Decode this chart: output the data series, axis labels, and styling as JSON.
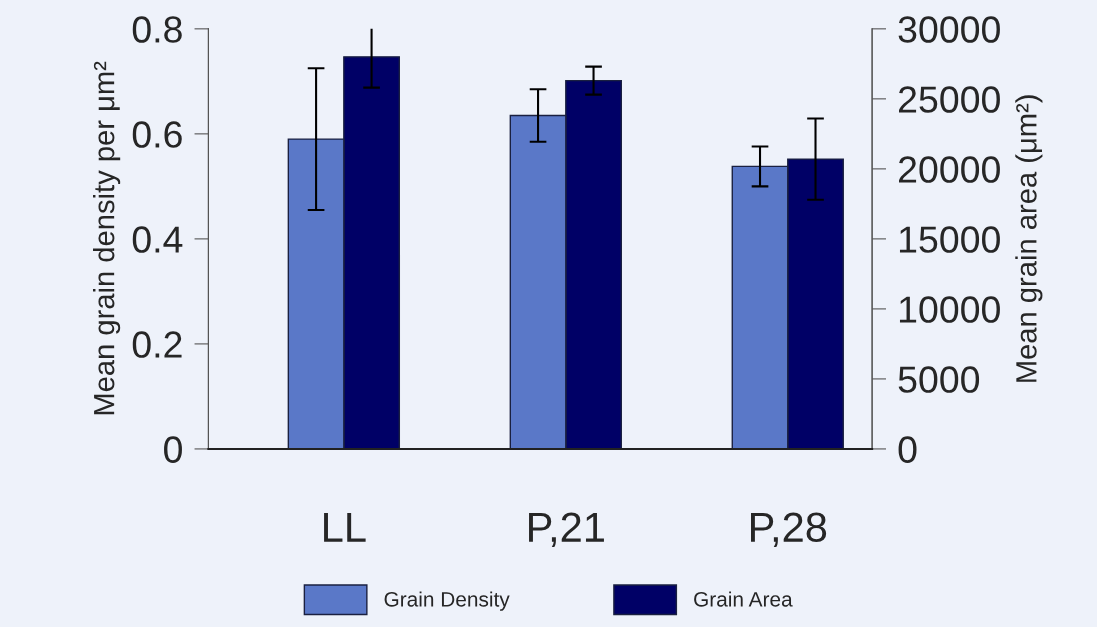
{
  "chart_data": {
    "type": "bar",
    "ylabel": "Mean grain density per μm²",
    "y2label": "Mean grain area (μm²)",
    "categories": [
      "LL",
      "P,21",
      "P,28"
    ],
    "series": [
      {
        "name": "Grain Density",
        "color": "#5a78c8",
        "values": [
          0.59,
          0.635,
          0.538
        ],
        "errors": [
          0.135,
          0.05,
          0.038
        ]
      },
      {
        "name": "Grain Area",
        "color": "#000066",
        "values": [
          28000,
          26300,
          20700
        ],
        "errors": [
          2200,
          1000,
          2900
        ],
        "axis": "y2"
      }
    ],
    "ylim": [
      0,
      0.8
    ],
    "yticks": [
      0,
      0.2,
      0.4,
      0.6,
      0.8
    ],
    "y2lim": [
      0,
      30000
    ],
    "y2ticks": [
      0,
      5000,
      10000,
      15000,
      20000,
      25000,
      30000
    ],
    "grid": false,
    "legend": "bottom"
  }
}
